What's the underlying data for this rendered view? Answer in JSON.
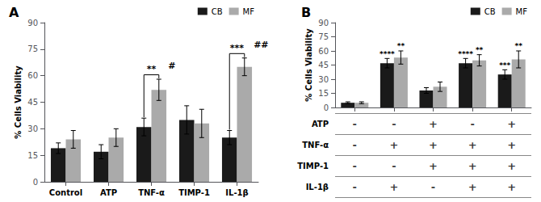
{
  "chart_data": [
    {
      "type": "bar",
      "title": "A",
      "categories": [
        "Control",
        "ATP",
        "TNF-α",
        "TIMP-1",
        "IL-1β"
      ],
      "series": [
        {
          "name": "CB",
          "color": "#1a1a1a",
          "values": [
            19,
            17,
            31,
            35,
            25
          ],
          "errors": [
            3,
            4,
            5,
            8,
            4
          ]
        },
        {
          "name": "MF",
          "color": "#aaaaaa",
          "values": [
            24,
            25,
            52,
            33,
            65
          ],
          "errors": [
            5,
            5,
            6,
            8,
            5
          ]
        }
      ],
      "ylabel": "% Cells Viability",
      "ylim": [
        0,
        90
      ],
      "yticks": [
        0,
        15,
        30,
        45,
        60,
        75,
        90
      ],
      "grid": false,
      "legend": "upper right",
      "annotations": [
        {
          "index": 2,
          "between": [
            "CB",
            "MF"
          ],
          "text": "**"
        },
        {
          "index": 2,
          "series": "MF",
          "text": "#"
        },
        {
          "index": 4,
          "between": [
            "CB",
            "MF"
          ],
          "text": "***"
        },
        {
          "index": 4,
          "series": "MF",
          "text": "##"
        }
      ]
    },
    {
      "type": "bar",
      "title": "B",
      "categories": [
        null,
        null,
        null,
        null,
        null
      ],
      "series": [
        {
          "name": "CB",
          "color": "#1a1a1a",
          "values": [
            5,
            47,
            18,
            47,
            35
          ],
          "errors": [
            1,
            5,
            3,
            5,
            5
          ]
        },
        {
          "name": "MF",
          "color": "#aaaaaa",
          "values": [
            5,
            53,
            22,
            50,
            51
          ],
          "errors": [
            1,
            7,
            5,
            6,
            9
          ]
        }
      ],
      "ylabel": "% Cells Viability",
      "ylim": [
        0,
        90
      ],
      "yticks": [
        0,
        15,
        30,
        45,
        60,
        75,
        90
      ],
      "grid": false,
      "legend": "upper right",
      "annotations": [
        {
          "index": 1,
          "series": "CB",
          "text": "****"
        },
        {
          "index": 3,
          "series": "CB",
          "text": "****"
        },
        {
          "index": 4,
          "series": "CB",
          "text": "***"
        },
        {
          "index": 1,
          "series": "MF",
          "text": "**"
        },
        {
          "index": 3,
          "series": "MF",
          "text": "**"
        },
        {
          "index": 4,
          "series": "MF",
          "text": "**"
        }
      ],
      "table": {
        "rows": [
          "ATP",
          "TNF-α",
          "TIMP-1",
          "IL-1β"
        ],
        "cells": [
          [
            "-",
            "-",
            "+",
            "-",
            "+"
          ],
          [
            "-",
            "+",
            "+",
            "+",
            "+"
          ],
          [
            "-",
            "-",
            "+",
            "+",
            "+"
          ],
          [
            "-",
            "+",
            "-",
            "+",
            "+"
          ]
        ]
      }
    }
  ]
}
